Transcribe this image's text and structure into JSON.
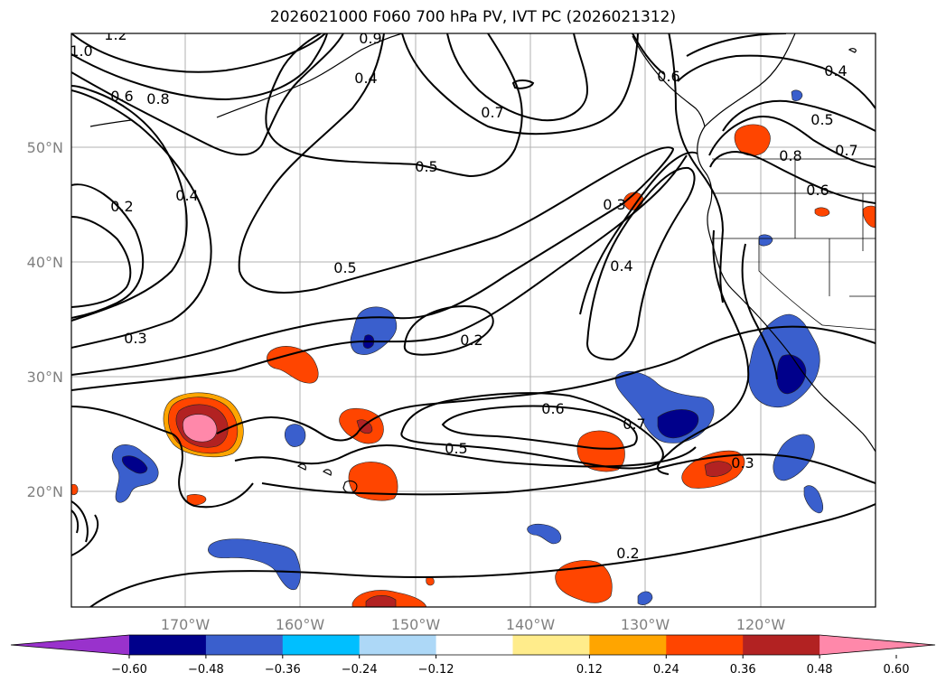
{
  "title": "2026021000 F060 700 hPa PV, IVT PC (2026021312)",
  "map": {
    "lat_labels": [
      "50°N",
      "40°N",
      "30°N",
      "20°N"
    ],
    "lon_labels": [
      "170°W",
      "160°W",
      "150°W",
      "140°W",
      "130°W",
      "120°W"
    ],
    "gridlines": true
  },
  "contour_labels": [
    "1.2",
    "1.0",
    "0.6",
    "0.8",
    "0.9",
    "0.4",
    "0.7",
    "0.6",
    "0.4",
    "0.5",
    "0.7",
    "0.8",
    "0.6",
    "0.5",
    "0.3",
    "0.2",
    "0.4",
    "0.5",
    "0.4",
    "0.2",
    "0.3",
    "0.6",
    "0.7",
    "0.5",
    "0.3",
    "0.2"
  ],
  "colorbar": {
    "ticks": [
      "−0.60",
      "−0.48",
      "−0.36",
      "−0.24",
      "−0.12",
      "0.12",
      "0.24",
      "0.36",
      "0.48",
      "0.60"
    ],
    "colors": [
      "#9932cc",
      "#00008b",
      "#3a5fcd",
      "#00bfff",
      "#add8f7",
      "#ffffff",
      "#ffec8b",
      "#ffa500",
      "#ff4500",
      "#b22222",
      "#ff88aa"
    ]
  }
}
